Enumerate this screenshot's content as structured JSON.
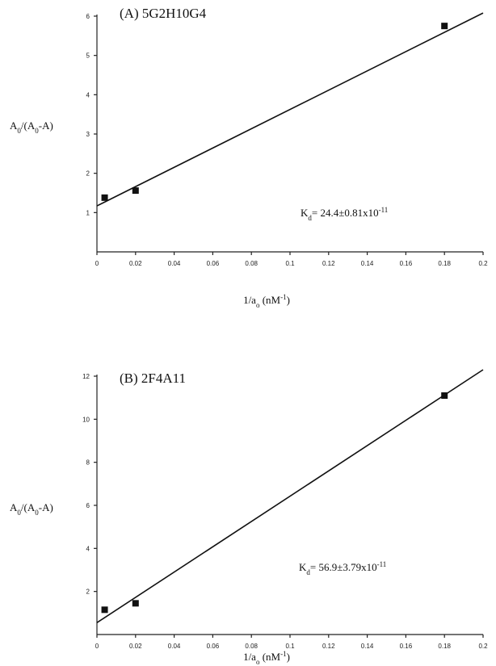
{
  "chart_data": [
    {
      "type": "scatter",
      "title": "(A)  5G2H10G4",
      "ylabel": "A0/(A0-A)",
      "xlabel": "1/a0  (nM-1)",
      "ylim": [
        0,
        6
      ],
      "xlim": [
        0,
        0.2
      ],
      "yticks": [
        "1",
        "2",
        "3",
        "4",
        "5",
        "6"
      ],
      "xticks": [
        "0",
        "0.02",
        "0.04",
        "0.06",
        "0.08",
        "0.1",
        "0.12",
        "0.14",
        "0.16",
        "0.18",
        "0.2"
      ],
      "points": [
        {
          "x": 0.004,
          "y": 1.38
        },
        {
          "x": 0.02,
          "y": 1.56
        },
        {
          "x": 0.18,
          "y": 5.75
        }
      ],
      "fit_line": {
        "x": [
          0,
          0.2
        ],
        "y": [
          1.17,
          6.08
        ]
      },
      "annotation": {
        "prefix": "K",
        "sub": "d",
        "value": "= 24.4±0.81x10",
        "exp": "-11"
      }
    },
    {
      "type": "scatter",
      "title": "(B)  2F4A11",
      "ylabel": "A0/(A0-A)",
      "xlabel": "1/a0  (nM-1)",
      "ylim": [
        0,
        12
      ],
      "xlim": [
        0,
        0.2
      ],
      "yticks": [
        "2",
        "4",
        "6",
        "8",
        "10",
        "12"
      ],
      "xticks": [
        "0",
        "0.02",
        "0.04",
        "0.06",
        "0.08",
        "0.1",
        "0.12",
        "0.14",
        "0.16",
        "0.18",
        "0.2"
      ],
      "points": [
        {
          "x": 0.004,
          "y": 1.15
        },
        {
          "x": 0.02,
          "y": 1.45
        },
        {
          "x": 0.18,
          "y": 11.1
        }
      ],
      "fit_line": {
        "x": [
          0,
          0.2
        ],
        "y": [
          0.55,
          12.3
        ]
      },
      "annotation": {
        "prefix": "K",
        "sub": "d",
        "value": "= 56.9±3.79x10",
        "exp": "-11"
      }
    }
  ]
}
